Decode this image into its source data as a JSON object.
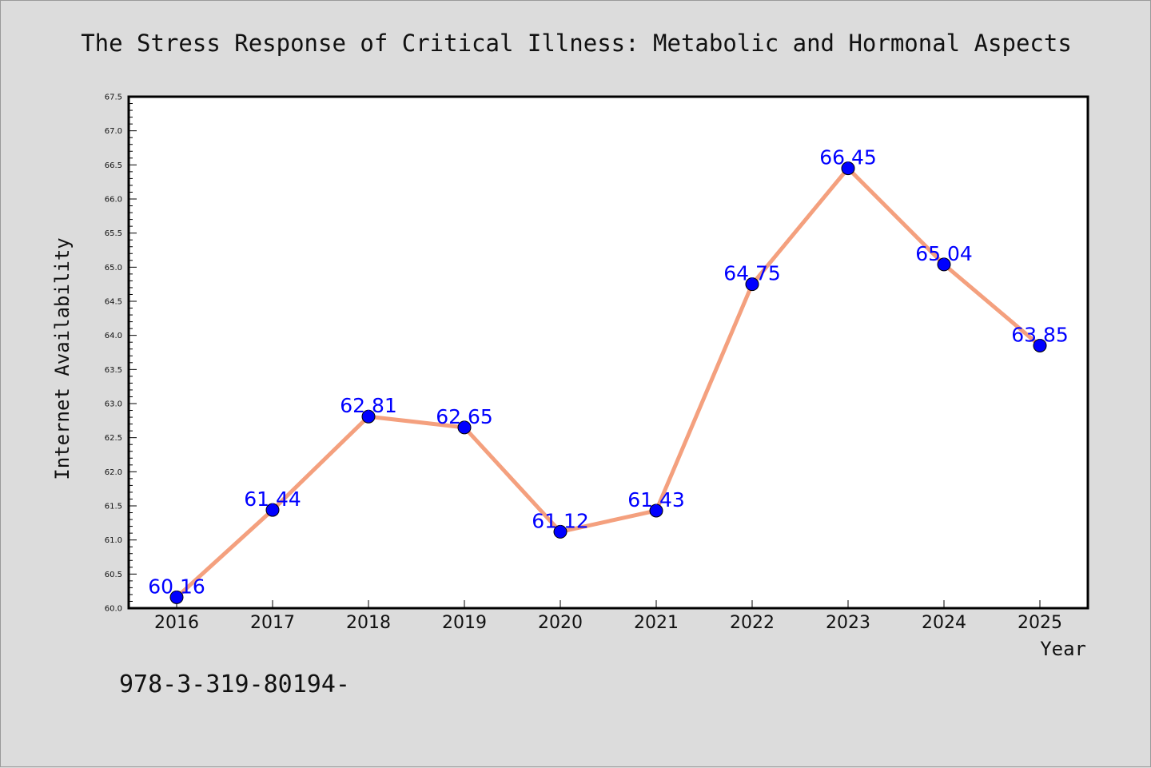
{
  "chart_data": {
    "type": "line",
    "title": "The Stress Response of Critical Illness: Metabolic and Hormonal Aspects",
    "xlabel": "Year",
    "ylabel": "Internet Availability",
    "categories": [
      "2016",
      "2017",
      "2018",
      "2019",
      "2020",
      "2021",
      "2022",
      "2023",
      "2024",
      "2025"
    ],
    "series": [
      {
        "values": [
          60.16,
          61.44,
          62.81,
          62.65,
          61.12,
          61.43,
          64.75,
          66.45,
          65.04,
          63.85
        ],
        "line_color": "#f4a07e",
        "marker_color": "#0000ff"
      }
    ],
    "data_labels": [
      "60.16",
      "61.44",
      "62.81",
      "62.65",
      "61.12",
      "61.43",
      "64.75",
      "66.45",
      "65.04",
      "63.85"
    ],
    "ylim": [
      60.0,
      67.5
    ],
    "yticks": [
      "60.0",
      "60.5",
      "61.0",
      "61.5",
      "62.0",
      "62.5",
      "63.0",
      "63.5",
      "64.0",
      "64.5",
      "65.0",
      "65.5",
      "66.0",
      "66.5",
      "67.0",
      "67.5"
    ],
    "grid": false,
    "legend": "none"
  },
  "footer": {
    "text": "978-3-319-80194-"
  },
  "colors": {
    "background": "#dcdcdc",
    "plot_area": "#ffffff"
  }
}
